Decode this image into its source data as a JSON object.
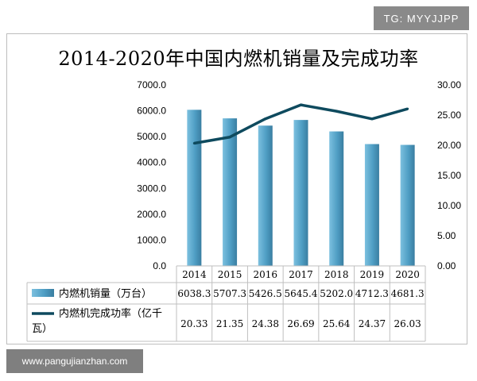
{
  "badges": {
    "top_right": "TG: MYYJJPP",
    "bottom_left": "www.pangujianzhan.com"
  },
  "chart_data": {
    "type": "bar",
    "title": "2014-2020年中国内燃机销量及完成功率",
    "categories": [
      "2014",
      "2015",
      "2016",
      "2017",
      "2018",
      "2019",
      "2020"
    ],
    "series": [
      {
        "name": "内燃机销量（万台）",
        "type": "bar",
        "axis": "left",
        "color": "#4f9ec4",
        "values": [
          6038.3,
          5707.3,
          5426.5,
          5645.4,
          5202.0,
          4712.3,
          4681.3
        ],
        "labels": [
          "6038.3",
          "5707.3",
          "5426.5",
          "5645.4",
          "5202.0",
          "4712.3",
          "4681.3"
        ]
      },
      {
        "name": "内燃机完成功率（亿千瓦）",
        "type": "line",
        "axis": "right",
        "color": "#0e4a5e",
        "values": [
          20.33,
          21.35,
          24.38,
          26.69,
          25.64,
          24.37,
          26.03
        ],
        "labels": [
          "20.33",
          "21.35",
          "24.38",
          "26.69",
          "25.64",
          "24.37",
          "26.03"
        ]
      }
    ],
    "y_left": {
      "ylim": [
        0,
        7000
      ],
      "ticks": [
        "0.0",
        "1000.0",
        "2000.0",
        "3000.0",
        "4000.0",
        "5000.0",
        "6000.0",
        "7000.0"
      ]
    },
    "y_right": {
      "ylim": [
        0,
        30
      ],
      "ticks": [
        "0.00",
        "5.00",
        "10.00",
        "15.00",
        "20.00",
        "25.00",
        "30.00"
      ]
    },
    "grid": false,
    "legend": "data-table-below"
  }
}
